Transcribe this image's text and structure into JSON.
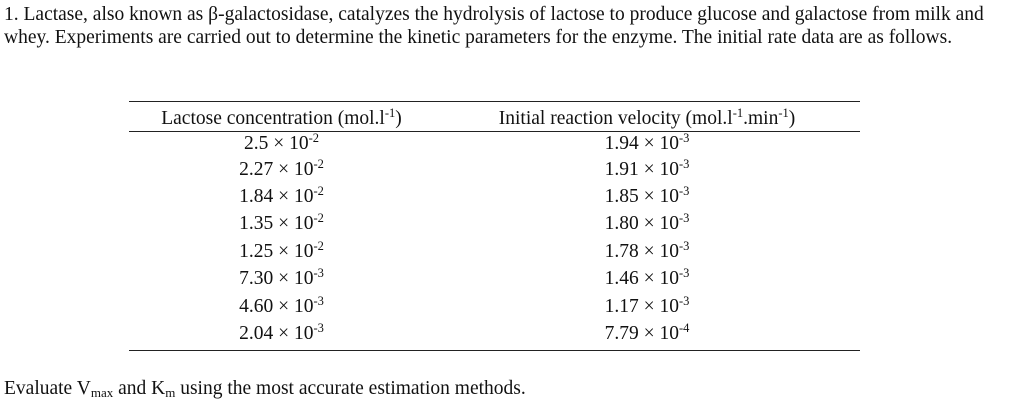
{
  "problem": {
    "intro": "1. Lactase, also known as β-galactosidase, catalyzes the hydrolysis of lactose to produce glucose and galactose from milk and whey. Experiments are carried out to determine the kinetic parameters for the enzyme. The initial rate data are as follows."
  },
  "table": {
    "col1_header_text": "Lactose concentration (mol.l",
    "col1_header_sup": "-1",
    "col1_header_tail": ")",
    "col2_header_text": "Initial reaction velocity (mol.l",
    "col2_header_sup1": "-1",
    "col2_header_mid": ".min",
    "col2_header_sup2": "-1",
    "col2_header_tail": ")",
    "rows": [
      {
        "conc": "2.5 × 10",
        "conc_exp": "-2",
        "vel": "1.94 × 10",
        "vel_exp": "-3"
      },
      {
        "conc": "2.27 × 10",
        "conc_exp": "-2",
        "vel": "1.91 × 10",
        "vel_exp": "-3"
      },
      {
        "conc": "1.84 × 10",
        "conc_exp": "-2",
        "vel": "1.85 × 10",
        "vel_exp": "-3"
      },
      {
        "conc": "1.35 × 10",
        "conc_exp": "-2",
        "vel": "1.80 × 10",
        "vel_exp": "-3"
      },
      {
        "conc": "1.25 × 10",
        "conc_exp": "-2",
        "vel": "1.78 × 10",
        "vel_exp": "-3"
      },
      {
        "conc": "7.30 × 10",
        "conc_exp": "-3",
        "vel": "1.46 × 10",
        "vel_exp": "-3"
      },
      {
        "conc": "4.60 × 10",
        "conc_exp": "-3",
        "vel": "1.17 × 10",
        "vel_exp": "-3"
      },
      {
        "conc": "2.04 × 10",
        "conc_exp": "-3",
        "vel": "7.79 × 10",
        "vel_exp": "-4"
      }
    ]
  },
  "question": {
    "part1": "Evaluate V",
    "sub1": "max",
    "part2": " and K",
    "sub2": "m",
    "part3": " using the most accurate estimation methods."
  }
}
